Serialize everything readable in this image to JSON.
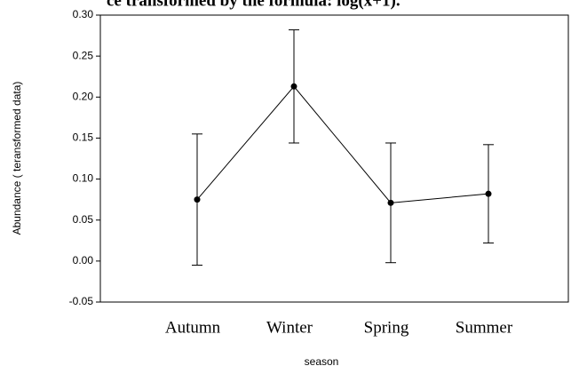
{
  "chart_data": {
    "type": "line",
    "title": "ce transformed by the formula: log(x+1).",
    "categories": [
      "Autumn",
      "Winter",
      "Spring",
      "Summer"
    ],
    "series": [
      {
        "values": [
          0.075,
          0.213,
          0.071,
          0.082
        ],
        "errors": [
          0.08,
          0.069,
          0.073,
          0.06
        ],
        "color": "#000000"
      }
    ],
    "ylim": [
      -0.05,
      0.3
    ],
    "yticks": [
      {
        "value": -0.05,
        "label": "-0.05"
      },
      {
        "value": 0,
        "label": "0.00"
      },
      {
        "value": 0.05,
        "label": "0.05"
      },
      {
        "value": 0.1,
        "label": "0.10"
      },
      {
        "value": 0.15,
        "label": "0.15"
      },
      {
        "value": 0.2,
        "label": "0.20"
      },
      {
        "value": 0.25,
        "label": "0.25"
      },
      {
        "value": 0.3,
        "label": "0.30"
      }
    ],
    "ylabel": "Abundance ( teransformed data)",
    "xlabel": "season"
  }
}
